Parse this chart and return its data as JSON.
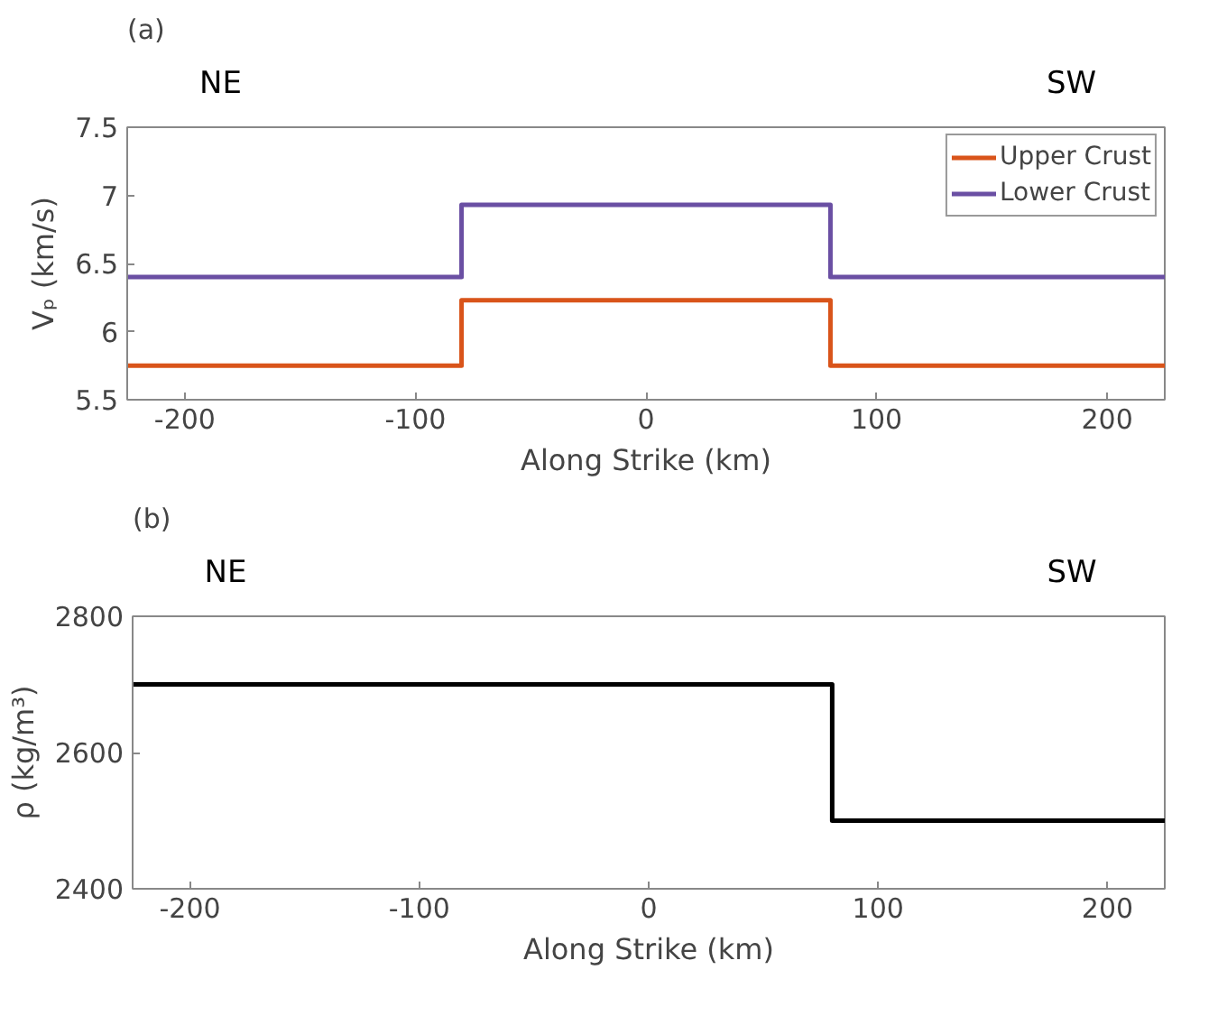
{
  "chart_data": [
    {
      "type": "line",
      "title": "(a)",
      "annotations": [
        "NE",
        "SW"
      ],
      "xlabel": "Along Strike (km)",
      "ylabel": "Vₚ (km/s)",
      "x": [
        -225,
        -80,
        -80,
        80,
        80,
        225
      ],
      "series": [
        {
          "name": "Upper Crust",
          "color": "#d9541a",
          "values": [
            5.75,
            5.75,
            6.23,
            6.23,
            5.75,
            5.75
          ]
        },
        {
          "name": "Lower Crust",
          "color": "#6a4fa3",
          "values": [
            6.4,
            6.4,
            6.93,
            6.93,
            6.4,
            6.4
          ]
        }
      ],
      "xlim": [
        -225,
        225
      ],
      "xticks": [
        -200,
        -100,
        0,
        100,
        200
      ],
      "ylim": [
        5.5,
        7.5
      ],
      "yticks": [
        5.5,
        6,
        6.5,
        7,
        7.5
      ],
      "grid": false,
      "legend": "top right"
    },
    {
      "type": "line",
      "title": "(b)",
      "annotations": [
        "NE",
        "SW"
      ],
      "xlabel": "Along Strike (km)",
      "ylabel": "ρ (kg/m³)",
      "x": [
        -225,
        80,
        80,
        225
      ],
      "series": [
        {
          "color": "#000000",
          "values": [
            2700,
            2700,
            2500,
            2500
          ]
        }
      ],
      "xlim": [
        -225,
        225
      ],
      "xticks": [
        -200,
        -100,
        0,
        100,
        200
      ],
      "ylim": [
        2400,
        2800
      ],
      "yticks": [
        2400,
        2600,
        2800
      ],
      "grid": false,
      "legend": false
    }
  ]
}
